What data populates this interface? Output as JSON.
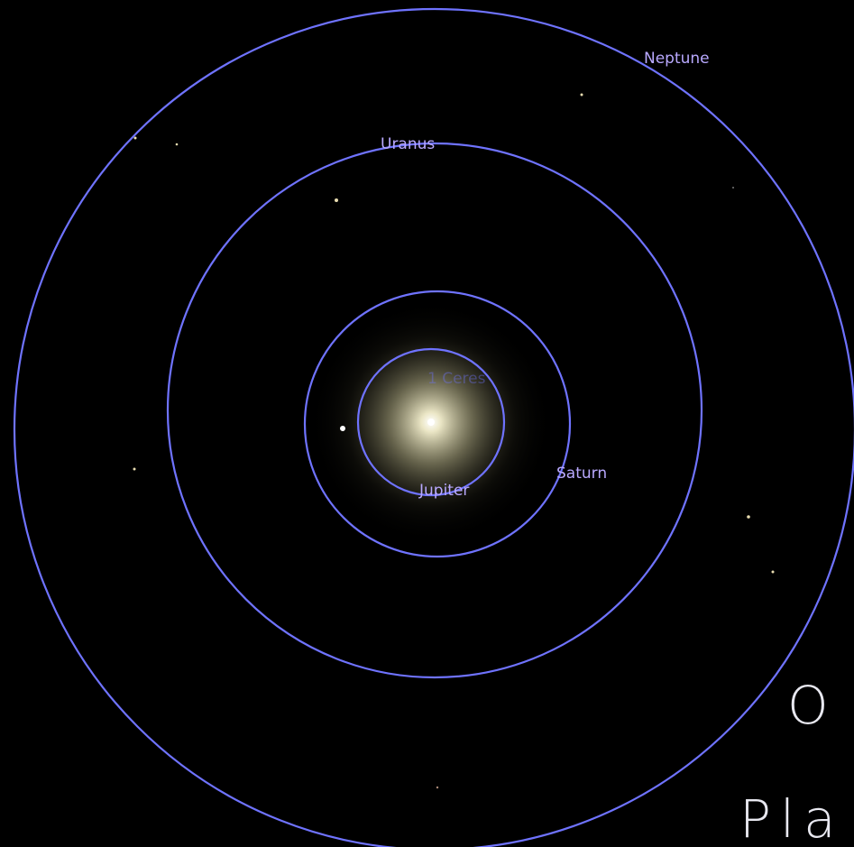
{
  "planet_labels": [
    "Neptune",
    "Uranus",
    "1 Ceres",
    "Saturn",
    "Jupiter"
  ],
  "overlay_text": [
    "O",
    "Pla"
  ]
}
